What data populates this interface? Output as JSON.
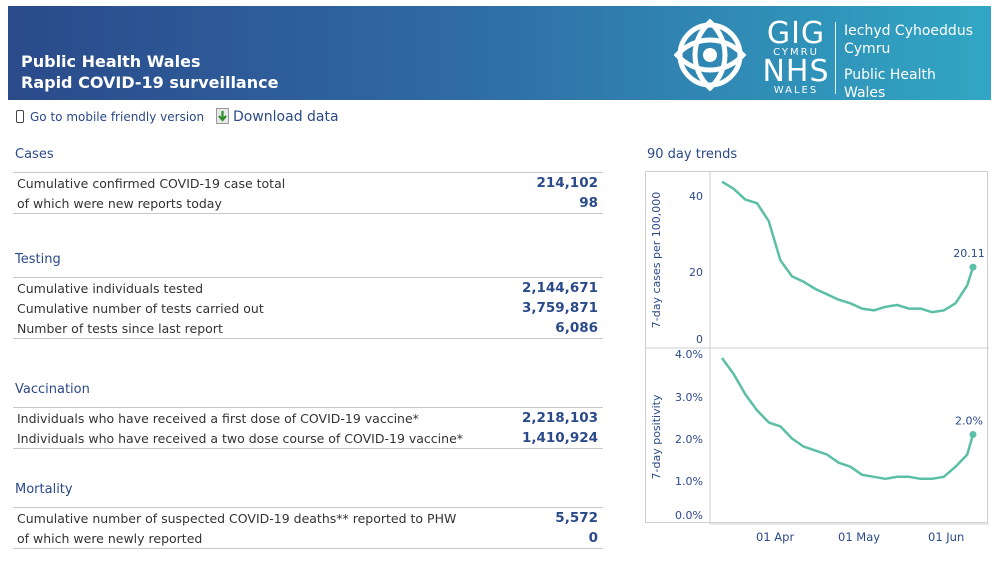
{
  "header": {
    "title_line1": "Public Health Wales",
    "title_line2": "Rapid COVID-19 surveillance",
    "logo_gig": "GIG",
    "logo_cymru": "CYMRU",
    "logo_nhs": "NHS",
    "logo_wales": "WALES",
    "org_line1": "Iechyd Cyhoeddus",
    "org_line2": "Cymru",
    "org_line3": "Public Health",
    "org_line4": "Wales"
  },
  "links": {
    "mobile": "Go to mobile friendly version",
    "download": "Download data"
  },
  "sections": {
    "cases": {
      "title": "Cases",
      "rows": [
        {
          "label": "Cumulative confirmed COVID-19 case total",
          "value": "214,102"
        },
        {
          "label": "of which were new reports today",
          "value": "98"
        }
      ]
    },
    "testing": {
      "title": "Testing",
      "rows": [
        {
          "label": "Cumulative individuals tested",
          "value": "2,144,671"
        },
        {
          "label": "Cumulative number of tests carried out",
          "value": "3,759,871"
        },
        {
          "label": "Number of tests since last report",
          "value": "6,086"
        }
      ]
    },
    "vaccination": {
      "title": "Vaccination",
      "rows": [
        {
          "label": "Individuals who have received a first dose of COVID-19 vaccine*",
          "value": "2,218,103"
        },
        {
          "label": "Individuals who have received a two dose course of COVID-19 vaccine*",
          "value": "1,410,924"
        }
      ]
    },
    "mortality": {
      "title": "Mortality",
      "rows": [
        {
          "label": "Cumulative number of suspected COVID-19 deaths** reported to PHW",
          "value": "5,572"
        },
        {
          "label": "of which were newly reported",
          "value": "0"
        }
      ]
    }
  },
  "trends": {
    "title": "90 day trends",
    "x_ticks": [
      "01 Apr",
      "01 May",
      "01 Jun"
    ],
    "chart1": {
      "ylabel": "7-day cases per 100,000",
      "y_ticks": [
        "40",
        "20",
        "0"
      ],
      "last_label": "20.11"
    },
    "chart2": {
      "ylabel": "7-day positivity",
      "y_ticks": [
        "4.0%",
        "3.0%",
        "2.0%",
        "1.0%",
        "0.0%"
      ],
      "last_label": "2.0%"
    },
    "line_color": "#5bbfa6"
  },
  "chart_data": [
    {
      "type": "line",
      "ylabel": "7-day cases per 100,000",
      "ylim": [
        0,
        45
      ],
      "x": [
        "2021-03-14",
        "2021-03-18",
        "2021-03-22",
        "2021-03-26",
        "2021-03-30",
        "2021-04-03",
        "2021-04-07",
        "2021-04-11",
        "2021-04-15",
        "2021-04-19",
        "2021-04-23",
        "2021-04-27",
        "2021-05-01",
        "2021-05-05",
        "2021-05-09",
        "2021-05-13",
        "2021-05-17",
        "2021-05-21",
        "2021-05-25",
        "2021-05-29",
        "2021-06-02",
        "2021-06-06",
        "2021-06-08"
      ],
      "series": [
        {
          "values": [
            44,
            42,
            39,
            38,
            33,
            22,
            17.5,
            16,
            14,
            12.5,
            11,
            10,
            8.5,
            8,
            9,
            9.5,
            8.5,
            8.5,
            7.5,
            8,
            10,
            15,
            20.11
          ]
        }
      ]
    },
    {
      "type": "line",
      "ylabel": "7-day positivity (%)",
      "ylim": [
        0,
        4
      ],
      "x": [
        "2021-03-14",
        "2021-03-18",
        "2021-03-22",
        "2021-03-26",
        "2021-03-30",
        "2021-04-03",
        "2021-04-07",
        "2021-04-11",
        "2021-04-15",
        "2021-04-19",
        "2021-04-23",
        "2021-04-27",
        "2021-05-01",
        "2021-05-05",
        "2021-05-09",
        "2021-05-13",
        "2021-05-17",
        "2021-05-21",
        "2021-05-25",
        "2021-05-29",
        "2021-06-02",
        "2021-06-06",
        "2021-06-08"
      ],
      "series": [
        {
          "values": [
            3.9,
            3.5,
            3.0,
            2.6,
            2.3,
            2.2,
            1.9,
            1.7,
            1.6,
            1.5,
            1.3,
            1.2,
            1.0,
            0.95,
            0.9,
            0.95,
            0.95,
            0.9,
            0.9,
            0.95,
            1.2,
            1.5,
            2.0
          ]
        }
      ]
    }
  ]
}
